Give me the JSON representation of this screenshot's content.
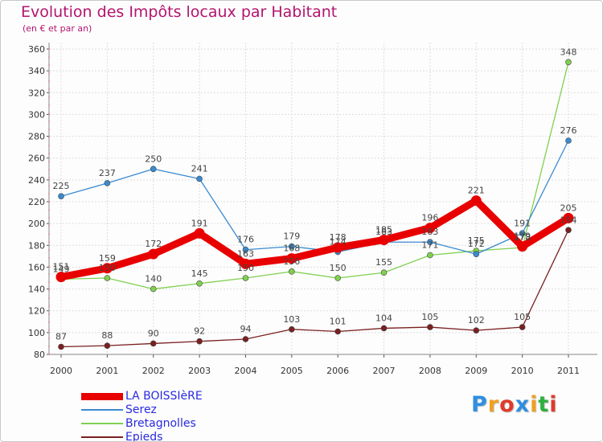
{
  "chart_data": {
    "type": "line",
    "title": "Evolution des Impôts locaux par Habitant",
    "subtitle": "(en € et par an)",
    "xlabel": "",
    "ylabel": "",
    "ylim": [
      80,
      360
    ],
    "yticks": [
      80,
      100,
      120,
      140,
      160,
      180,
      200,
      220,
      240,
      260,
      280,
      300,
      320,
      340,
      360
    ],
    "categories": [
      "2000",
      "2001",
      "2002",
      "2003",
      "2004",
      "2005",
      "2006",
      "2007",
      "2008",
      "2009",
      "2010",
      "2011"
    ],
    "series": [
      {
        "name": "LA BOISSIèRE",
        "color": "#e80000",
        "values": [
          151,
          159,
          172,
          191,
          163,
          168,
          178,
          185,
          196,
          221,
          179,
          205
        ]
      },
      {
        "name": "Serez",
        "color": "#3a8ad0",
        "values": [
          225,
          237,
          250,
          241,
          176,
          179,
          174,
          183,
          183,
          172,
          191,
          276
        ]
      },
      {
        "name": "Bretagnolles",
        "color": "#80d050",
        "values": [
          149,
          150,
          140,
          145,
          150,
          156,
          150,
          155,
          171,
          175,
          178,
          348
        ]
      },
      {
        "name": "Epieds",
        "color": "#7a2020",
        "values": [
          87,
          88,
          90,
          92,
          94,
          103,
          101,
          104,
          105,
          102,
          105,
          194
        ]
      }
    ]
  },
  "logo": {
    "letters": [
      "P",
      "r",
      "o",
      "x",
      "i",
      "t",
      "i"
    ],
    "colors": [
      "#2f8fe0",
      "#f0a020",
      "#e03a2a",
      "#2f8fe0",
      "#f0a020",
      "#2fb040",
      "#e03a2a"
    ]
  }
}
